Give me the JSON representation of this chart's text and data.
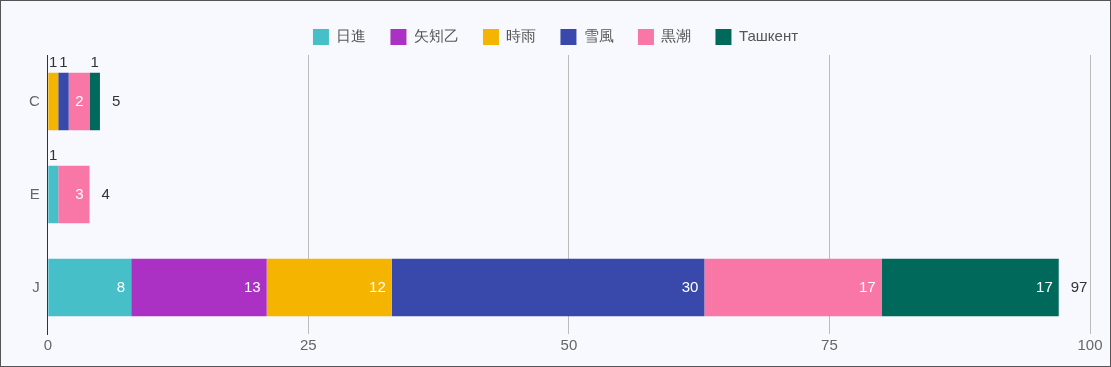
{
  "chart_data": {
    "type": "bar",
    "orientation": "horizontal",
    "stacked": true,
    "categories": [
      "C",
      "E",
      "J"
    ],
    "series": [
      {
        "name": "日進",
        "color": "#47bfc9",
        "values": [
          null,
          1,
          8
        ]
      },
      {
        "name": "矢矧乙",
        "color": "#ab30c4",
        "values": [
          null,
          null,
          13
        ]
      },
      {
        "name": "時雨",
        "color": "#f4b400",
        "values": [
          1,
          null,
          12
        ]
      },
      {
        "name": "雪風",
        "color": "#3949ab",
        "values": [
          1,
          null,
          30
        ]
      },
      {
        "name": "黒潮",
        "color": "#f977a6",
        "values": [
          2,
          3,
          17
        ]
      },
      {
        "name": "Ташкент",
        "color": "#00695c",
        "values": [
          1,
          null,
          17
        ]
      }
    ],
    "xlim": [
      0,
      100
    ],
    "xticks": [
      0,
      25,
      50,
      75,
      100
    ],
    "grid": "x",
    "legend": "top",
    "data_labels": true,
    "totals": [
      "5",
      "4",
      "97"
    ]
  }
}
